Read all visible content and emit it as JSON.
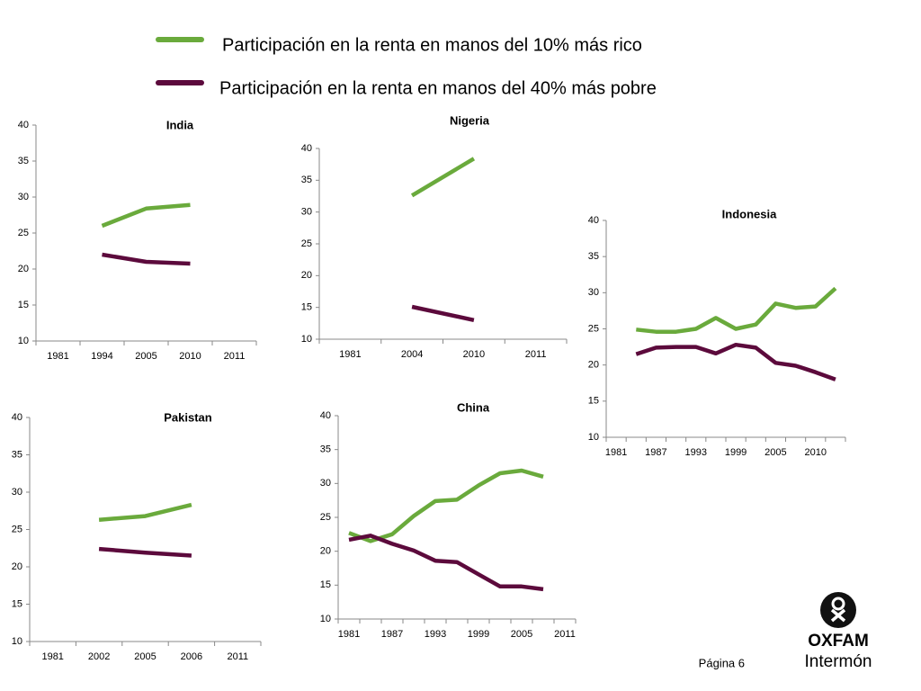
{
  "legend": {
    "items": [
      {
        "name": "Participación en la renta en manos del 10% más rico",
        "color": "#6aaa3c"
      },
      {
        "name": "Participación en la renta en manos del 40% más pobre",
        "color": "#5c0a3c"
      }
    ]
  },
  "chart_data": [
    {
      "type": "line",
      "title": "India",
      "categories": [
        "1981",
        "1994",
        "2005",
        "2010",
        "2011"
      ],
      "ylim": [
        10,
        40
      ],
      "yticks": [
        10,
        15,
        20,
        25,
        30,
        35,
        40
      ],
      "series": [
        {
          "values": [
            null,
            26,
            28.4,
            28.9,
            null
          ]
        },
        {
          "values": [
            null,
            22,
            21,
            20.75,
            null
          ]
        }
      ]
    },
    {
      "type": "line",
      "title": "Nigeria",
      "categories": [
        "1981",
        "2004",
        "2010",
        "2011"
      ],
      "ylim": [
        10,
        40
      ],
      "yticks": [
        10,
        15,
        20,
        25,
        30,
        35,
        40
      ],
      "series": [
        {
          "values": [
            null,
            32.6,
            38.4,
            null
          ]
        },
        {
          "values": [
            null,
            15.1,
            13,
            null
          ]
        }
      ]
    },
    {
      "type": "line",
      "title": "Indonesia",
      "categories": [
        "1981",
        null,
        "1987",
        null,
        "1993",
        null,
        "1999",
        null,
        "2005",
        null,
        "2010",
        null
      ],
      "ylim": [
        10,
        40
      ],
      "yticks": [
        10,
        15,
        20,
        25,
        30,
        35,
        40
      ],
      "series": [
        {
          "values": [
            null,
            24.9,
            24.6,
            24.6,
            25,
            26.5,
            25,
            25.6,
            28.5,
            27.9,
            28.1,
            30.6
          ]
        },
        {
          "values": [
            null,
            21.5,
            22.4,
            22.5,
            22.5,
            21.6,
            22.8,
            22.4,
            20.3,
            19.9,
            19,
            18
          ]
        }
      ]
    },
    {
      "type": "line",
      "title": "Pakistan",
      "categories": [
        "1981",
        "2002",
        "2005",
        "2006",
        "2011"
      ],
      "ylim": [
        10,
        40
      ],
      "yticks": [
        10,
        15,
        20,
        25,
        30,
        35,
        40
      ],
      "series": [
        {
          "values": [
            null,
            26.3,
            26.8,
            28.3,
            null
          ]
        },
        {
          "values": [
            null,
            22.4,
            21.9,
            21.5,
            null
          ]
        }
      ]
    },
    {
      "type": "line",
      "title": "China",
      "categories": [
        "1981",
        null,
        "1987",
        null,
        "1993",
        null,
        "1999",
        null,
        "2005",
        null,
        "2011"
      ],
      "ylim": [
        10,
        40
      ],
      "yticks": [
        10,
        15,
        20,
        25,
        30,
        35,
        40
      ],
      "series": [
        {
          "values": [
            22.7,
            21.5,
            22.5,
            25.2,
            27.4,
            27.6,
            29.7,
            31.5,
            31.9,
            31,
            null
          ]
        },
        {
          "values": [
            21.7,
            22.3,
            21.1,
            20.1,
            18.6,
            18.4,
            16.6,
            14.8,
            14.8,
            14.4,
            null
          ]
        }
      ]
    }
  ],
  "footer": {
    "page": "Página 6",
    "logo_top": "OXFAM",
    "logo_bottom": "Intermón"
  }
}
